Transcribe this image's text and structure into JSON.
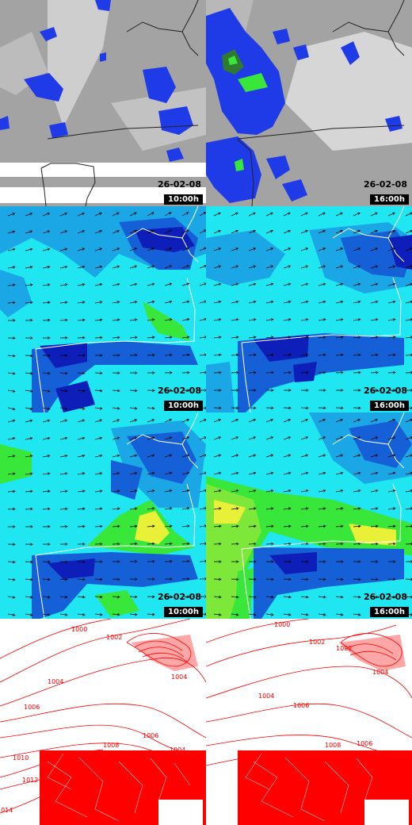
{
  "colors": {
    "cloud_gray": "#a9a9a9",
    "precip_blue": "#1f3be8",
    "precip_green": "#39e63a",
    "wind_cyan": "#1fe6f0",
    "wind_blue": "#1560d6",
    "wind_navy": "#0d1fb8",
    "wind_green": "#39e63a",
    "wind_yellow": "#e8f038",
    "isobar_red": "#ff0000",
    "coast": "#ffffff",
    "coast_dark": "#222222"
  },
  "rows": [
    {
      "name": "cloud-precip",
      "panels": [
        {
          "date": "26-02-08",
          "time": "10:00h"
        },
        {
          "date": "26-02-08",
          "time": "16:00h"
        }
      ]
    },
    {
      "name": "wind-low",
      "panels": [
        {
          "date": "26-02-08",
          "time": "10:00h"
        },
        {
          "date": "26-02-08",
          "time": "16:00h"
        }
      ]
    },
    {
      "name": "wind-high",
      "panels": [
        {
          "date": "26-02-08",
          "time": "10:00h"
        },
        {
          "date": "26-02-08",
          "time": "16:00h"
        }
      ]
    },
    {
      "name": "pressure",
      "panels": [
        {
          "isobar_labels": [
            "1000",
            "1002",
            "1004",
            "1004",
            "1006",
            "1006",
            "1008",
            "1004",
            "1010",
            "1012",
            "1014"
          ]
        },
        {
          "isobar_labels": [
            "1000",
            "1002",
            "1002",
            "1004",
            "1004",
            "1006",
            "1006",
            "1008"
          ]
        }
      ]
    }
  ]
}
